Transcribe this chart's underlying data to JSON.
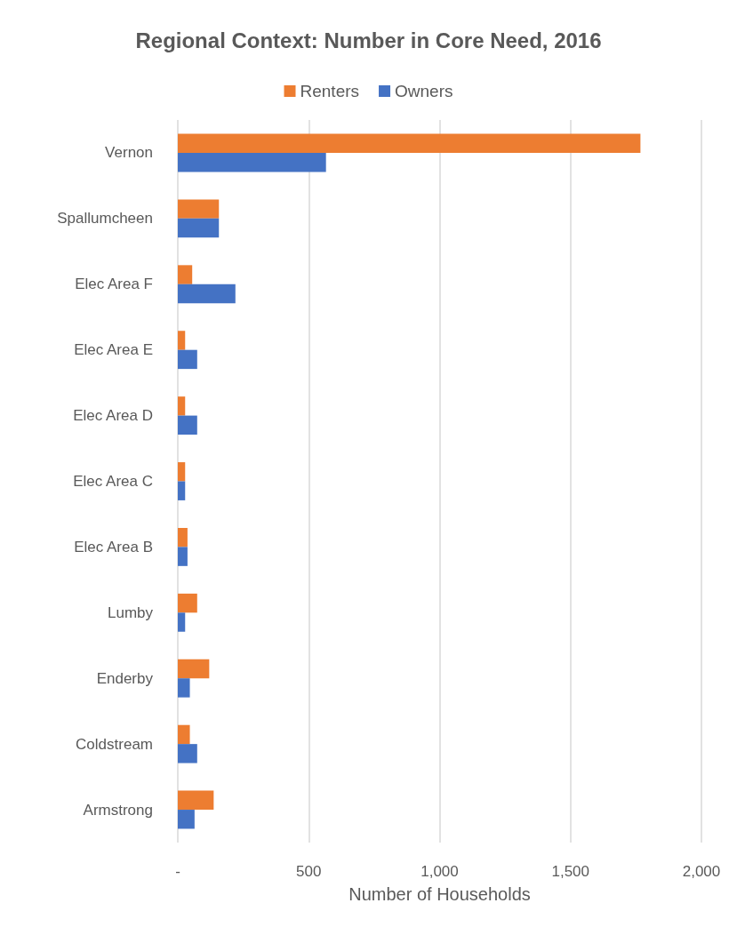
{
  "chart_data": {
    "type": "bar",
    "orientation": "horizontal",
    "title": "Regional Context: Number in Core Need, 2016",
    "xlabel": "Number of Households",
    "categories": [
      "Vernon",
      "Spallumcheen",
      "Elec Area F",
      "Elec Area E",
      "Elec Area D",
      "Elec Area C",
      "Elec Area B",
      "Lumby",
      "Enderby",
      "Coldstream",
      "Armstrong"
    ],
    "series": [
      {
        "name": "Renters",
        "color": "#ed7d31",
        "values": [
          1767,
          157,
          55,
          28,
          28,
          28,
          37,
          74,
          120,
          46,
          137
        ]
      },
      {
        "name": "Owners",
        "color": "#4472c4",
        "values": [
          566,
          157,
          220,
          74,
          74,
          28,
          37,
          28,
          46,
          74,
          64
        ]
      }
    ],
    "xlim": [
      0,
      2000
    ],
    "xticks": [
      {
        "value": 0,
        "label": "-"
      },
      {
        "value": 500,
        "label": "500"
      },
      {
        "value": 1000,
        "label": "1,000"
      },
      {
        "value": 1500,
        "label": "1,500"
      },
      {
        "value": 2000,
        "label": "2,000"
      }
    ],
    "grid": "x",
    "legend": "top"
  }
}
